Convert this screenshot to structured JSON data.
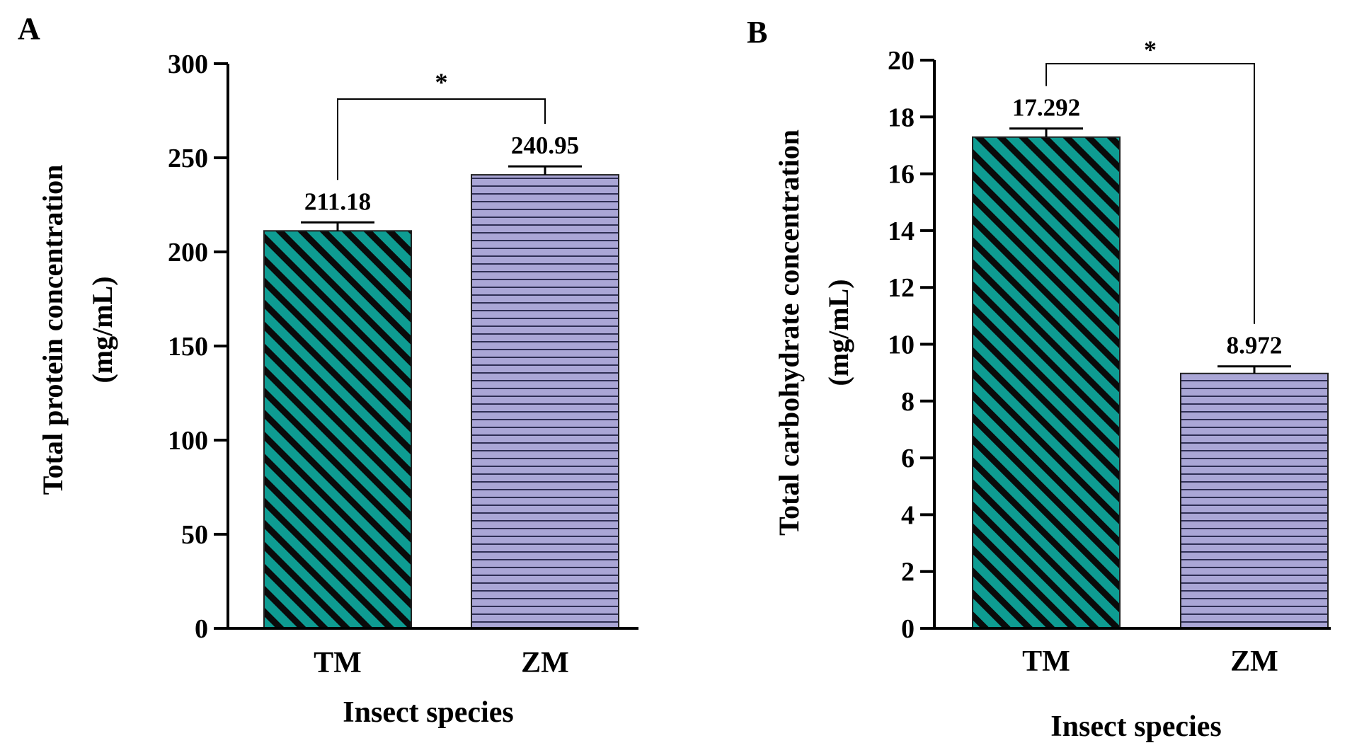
{
  "colors": {
    "tm_fill": "#0e9c92",
    "tm_hatch": "#0a0a0a",
    "zm_fill": "#aaa6d6",
    "zm_hatch": "#2f2f55",
    "axis": "#000000"
  },
  "chart_data": [
    {
      "panel": "A",
      "type": "bar",
      "categories": [
        "TM",
        "ZM"
      ],
      "values": [
        211.18,
        240.95
      ],
      "error": [
        4.5,
        4.5
      ],
      "value_labels": [
        "211.18",
        "240.95"
      ],
      "xlabel": "Insect species",
      "ylabel": "Total protein concentration",
      "ylabel_unit": "(mg/mL)",
      "ylim": [
        0,
        300
      ],
      "yticks": [
        0,
        50,
        100,
        150,
        200,
        250,
        300
      ],
      "significance": {
        "label": "*",
        "between": [
          "TM",
          "ZM"
        ]
      },
      "patterns": [
        "diagonal",
        "horizontal"
      ]
    },
    {
      "panel": "B",
      "type": "bar",
      "categories": [
        "TM",
        "ZM"
      ],
      "values": [
        17.292,
        8.972
      ],
      "error": [
        0.3,
        0.25
      ],
      "value_labels": [
        "17.292",
        "8.972"
      ],
      "xlabel": "Insect species",
      "ylabel": "Total carbohydrate concentration",
      "ylabel_unit": "(mg/mL)",
      "ylim": [
        0,
        20
      ],
      "yticks": [
        0,
        2,
        4,
        6,
        8,
        10,
        12,
        14,
        16,
        18,
        20
      ],
      "significance": {
        "label": "*",
        "between": [
          "TM",
          "ZM"
        ]
      },
      "patterns": [
        "diagonal",
        "horizontal"
      ]
    }
  ]
}
